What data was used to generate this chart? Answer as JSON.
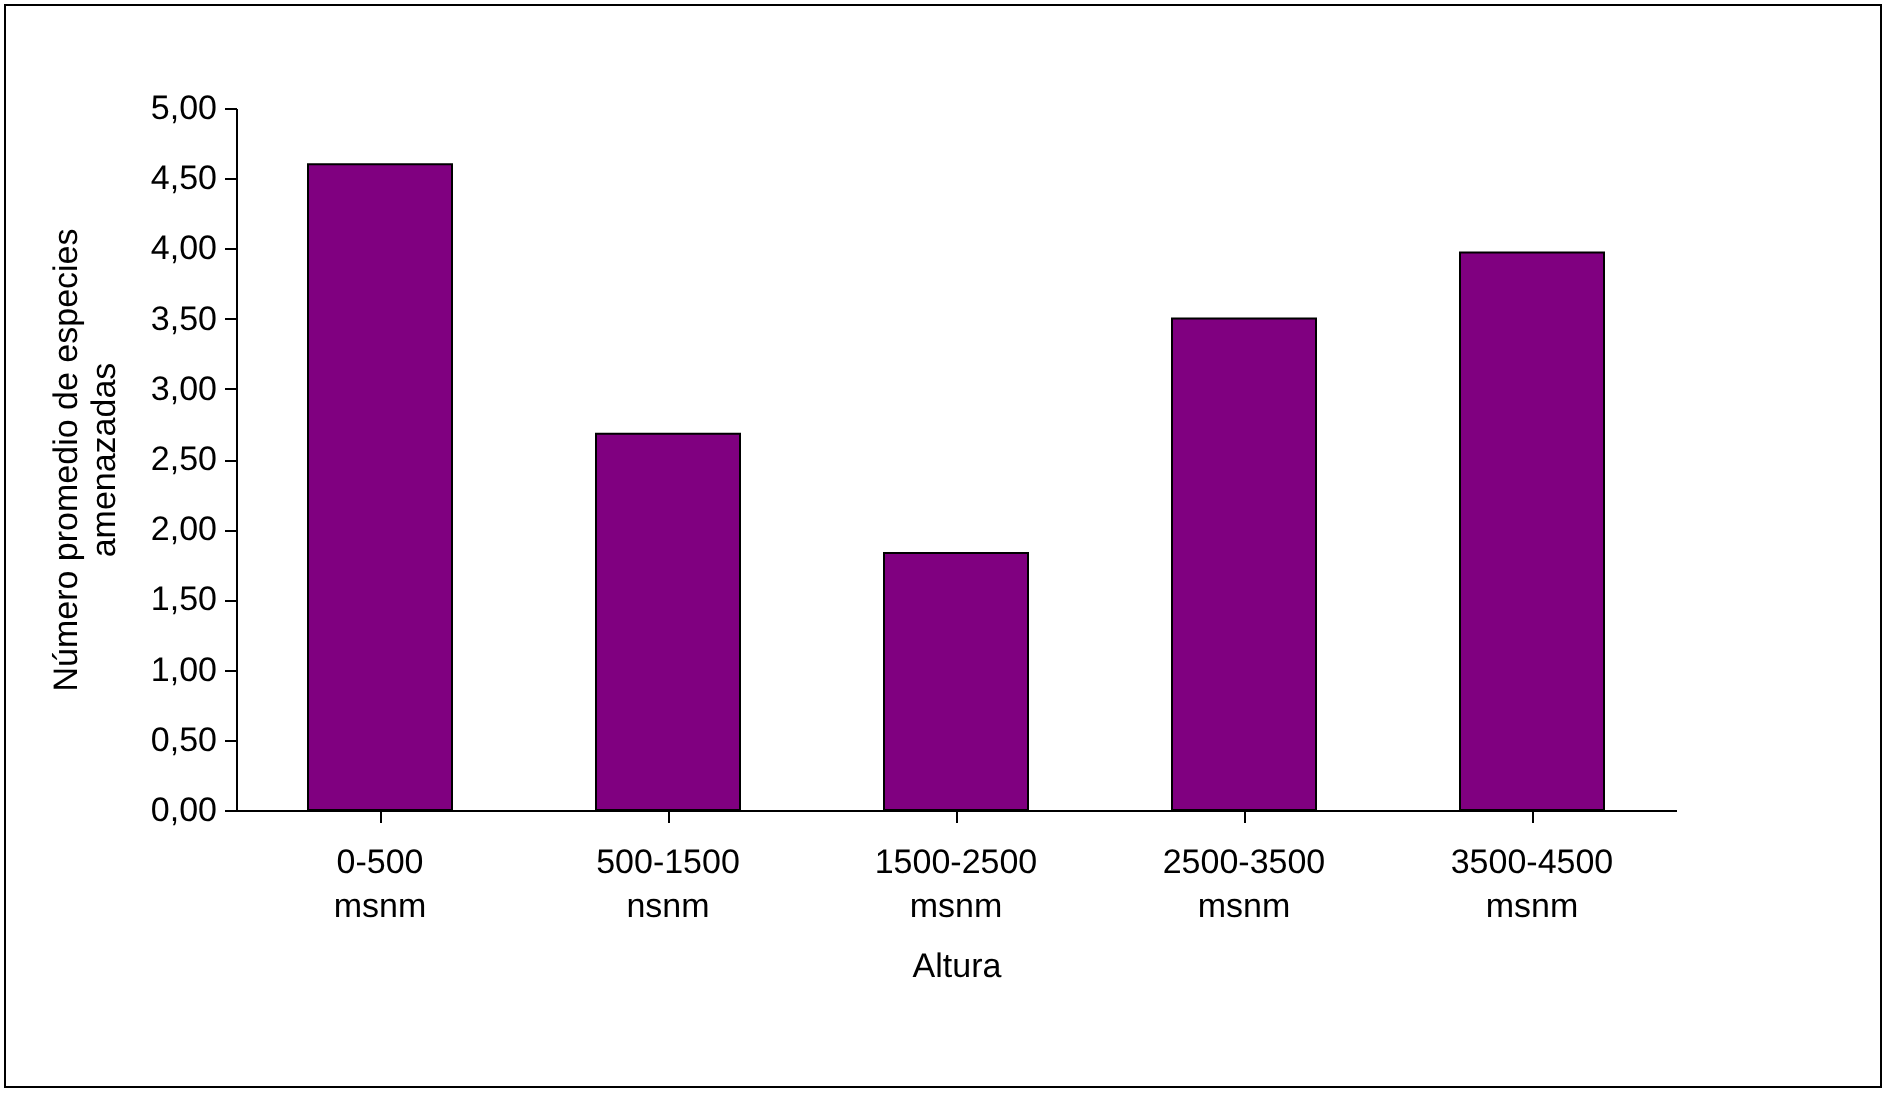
{
  "chart_data": {
    "type": "bar",
    "xlabel": "Altura",
    "ylabel": "Número promedio de especies amenazadas",
    "categories": [
      "0-500 msnm",
      "500-1500 nsnm",
      "1500-2500 msnm",
      "2500-3500 msnm",
      "3500-4500 msnm"
    ],
    "values": [
      4.6,
      2.68,
      1.83,
      3.5,
      3.97
    ],
    "color": "#800080",
    "ylim": [
      0,
      5
    ],
    "yticks": [
      {
        "value": 0,
        "label": "0,00"
      },
      {
        "value": 0.5,
        "label": "0,50"
      },
      {
        "value": 1,
        "label": "1,00"
      },
      {
        "value": 1.5,
        "label": "1,50"
      },
      {
        "value": 2,
        "label": "2,00"
      },
      {
        "value": 2.5,
        "label": "2,50"
      },
      {
        "value": 3,
        "label": "3,00"
      },
      {
        "value": 3.5,
        "label": "3,50"
      },
      {
        "value": 4,
        "label": "4,00"
      },
      {
        "value": 4.5,
        "label": "4,50"
      },
      {
        "value": 5,
        "label": "5,00"
      }
    ],
    "grid": false
  }
}
